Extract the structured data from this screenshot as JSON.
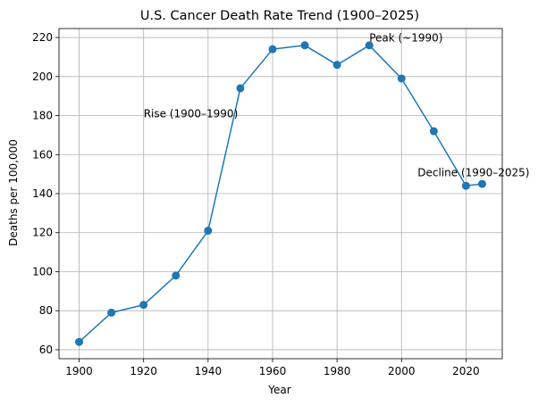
{
  "chart_data": {
    "type": "line",
    "title": "U.S. Cancer Death Rate Trend (1900–2025)",
    "xlabel": "Year",
    "ylabel": "Deaths per 100,000",
    "xlim": [
      1893.75,
      2031.25
    ],
    "ylim": [
      55.4,
      224.6
    ],
    "x_ticks": [
      1900,
      1920,
      1940,
      1960,
      1980,
      2000,
      2020
    ],
    "y_ticks": [
      60,
      80,
      100,
      120,
      140,
      160,
      180,
      200,
      220
    ],
    "grid": true,
    "series": [
      {
        "color": "#1f77b4",
        "x": [
          1900,
          1910,
          1920,
          1930,
          1940,
          1950,
          1960,
          1970,
          1980,
          1990,
          2000,
          2010,
          2020,
          2025
        ],
        "y": [
          64,
          79,
          83,
          98,
          121,
          194,
          214,
          216,
          206,
          216,
          199,
          172,
          144,
          145
        ]
      }
    ],
    "annotations": [
      {
        "text": "Rise (1900–1990)",
        "x": 1920,
        "y": 179
      },
      {
        "text": "Peak (~1990)",
        "x": 1990,
        "y": 218
      },
      {
        "text": "Decline (1990–2025)",
        "x": 2005,
        "y": 149
      }
    ]
  }
}
